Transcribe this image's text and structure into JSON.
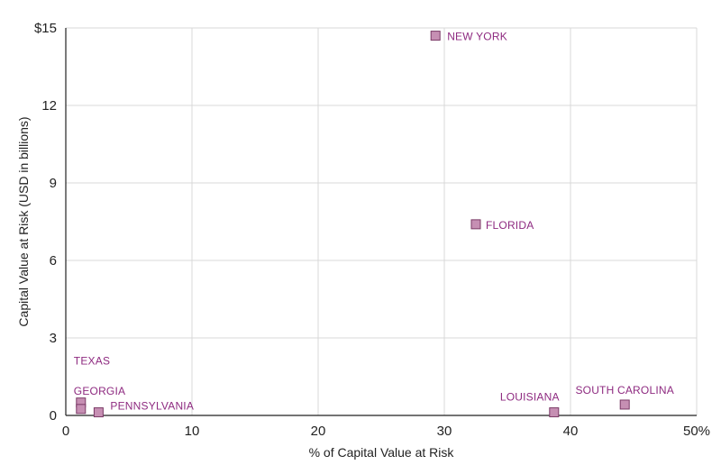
{
  "chart_data": {
    "type": "scatter",
    "title": "",
    "xlabel": "% of Capital Value at Risk",
    "ylabel": "Capital Value at Risk (USD in billions)",
    "xlim": [
      0,
      50
    ],
    "ylim": [
      0,
      15
    ],
    "x_ticks": [
      "0",
      "10",
      "20",
      "30",
      "40",
      "50%"
    ],
    "y_ticks": [
      "0",
      "3",
      "6",
      "9",
      "12",
      "$15"
    ],
    "grid": "vertical and horizontal",
    "series": [
      {
        "points": [
          {
            "label": "NEW YORK",
            "x": 29.3,
            "y": 14.7
          },
          {
            "label": "FLORIDA",
            "x": 32.5,
            "y": 7.4
          },
          {
            "label": "TEXAS",
            "x": 1.2,
            "y": 0.5
          },
          {
            "label": "GEORGIA",
            "x": 1.2,
            "y": 0.25
          },
          {
            "label": "PENNSYLVANIA",
            "x": 2.6,
            "y": 0.12
          },
          {
            "label": "LOUISIANA",
            "x": 38.7,
            "y": 0.12
          },
          {
            "label": "SOUTH CAROLINA",
            "x": 44.3,
            "y": 0.42
          }
        ]
      }
    ],
    "colors": {
      "marker_fill": "#c68fb3",
      "marker_stroke": "#7a3a66",
      "label": "#8e2a80",
      "grid": "#d9d9d9",
      "axis": "#222222"
    }
  }
}
